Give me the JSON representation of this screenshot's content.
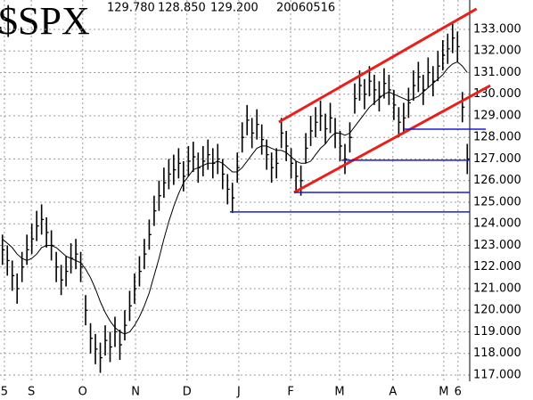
{
  "chart_data": {
    "type": "ohlc",
    "title": "$SPX",
    "header_values": [
      {
        "value": 129.78,
        "label": "129.780"
      },
      {
        "value": 128.85,
        "label": "128.850"
      },
      {
        "value": 129.2,
        "label": "129.200"
      }
    ],
    "date": "20060516",
    "color": "#000000",
    "high": [
      123.5,
      123.0,
      122.3,
      121.7,
      122.7,
      123.5,
      124.0,
      124.6,
      124.9,
      124.3,
      123.7,
      122.7,
      122.1,
      122.5,
      123.1,
      123.3,
      122.7,
      120.7,
      119.4,
      118.9,
      118.5,
      119.3,
      119.0,
      119.7,
      119.1,
      120.0,
      120.9,
      121.7,
      122.5,
      123.3,
      124.2,
      125.3,
      126.0,
      126.6,
      127.0,
      127.2,
      127.5,
      126.9,
      127.6,
      127.8,
      127.3,
      127.6,
      127.9,
      127.5,
      127.7,
      127.0,
      126.3,
      125.9,
      127.3,
      128.7,
      129.5,
      128.9,
      129.3,
      128.6,
      127.9,
      127.3,
      127.5,
      128.9,
      128.3,
      127.5,
      126.9,
      126.7,
      128.2,
      129.0,
      129.4,
      129.7,
      129.1,
      129.6,
      128.9,
      128.3,
      127.7,
      128.7,
      130.5,
      131.1,
      130.7,
      131.3,
      130.9,
      130.6,
      131.2,
      130.9,
      130.2,
      129.4,
      129.6,
      130.3,
      131.1,
      131.5,
      130.9,
      131.7,
      131.3,
      132.0,
      132.5,
      132.8,
      133.3,
      132.9,
      130.1,
      127.7
    ],
    "low": [
      122.1,
      121.6,
      120.9,
      120.3,
      121.3,
      122.1,
      122.6,
      123.2,
      123.5,
      122.9,
      122.3,
      121.3,
      120.7,
      121.1,
      121.7,
      121.9,
      121.3,
      119.3,
      118.0,
      117.5,
      117.1,
      117.9,
      117.6,
      118.3,
      117.7,
      118.6,
      119.5,
      120.3,
      121.1,
      121.9,
      122.8,
      123.9,
      124.6,
      125.2,
      125.6,
      125.8,
      126.1,
      125.5,
      126.2,
      126.4,
      125.9,
      126.2,
      126.5,
      126.1,
      126.3,
      125.6,
      124.9,
      124.5,
      125.9,
      127.3,
      128.1,
      127.5,
      127.9,
      127.2,
      126.5,
      125.9,
      126.1,
      127.5,
      126.9,
      126.1,
      125.5,
      125.3,
      126.8,
      127.6,
      128.0,
      128.3,
      127.7,
      128.2,
      127.5,
      126.9,
      126.3,
      127.3,
      129.1,
      129.7,
      129.3,
      129.9,
      129.5,
      129.2,
      129.8,
      129.5,
      128.8,
      128.0,
      128.2,
      128.9,
      129.7,
      130.1,
      129.5,
      130.3,
      129.9,
      130.6,
      131.1,
      131.4,
      131.9,
      131.5,
      128.7,
      126.3
    ],
    "close": [
      122.8,
      122.3,
      121.6,
      121.0,
      122.0,
      122.8,
      123.3,
      123.9,
      124.2,
      123.6,
      123.0,
      122.0,
      121.4,
      121.8,
      122.4,
      122.6,
      122.0,
      120.0,
      118.7,
      118.2,
      117.8,
      118.6,
      118.3,
      119.0,
      118.4,
      119.3,
      120.2,
      121.0,
      121.8,
      122.6,
      123.5,
      124.6,
      125.3,
      125.9,
      126.3,
      126.5,
      126.8,
      126.2,
      126.9,
      127.1,
      126.6,
      126.9,
      127.2,
      126.8,
      127.0,
      126.3,
      125.6,
      125.2,
      126.6,
      128.0,
      128.8,
      128.2,
      128.6,
      127.9,
      127.2,
      126.6,
      126.8,
      128.2,
      127.6,
      126.8,
      126.2,
      126.0,
      127.5,
      128.3,
      128.7,
      129.0,
      128.4,
      128.9,
      128.2,
      127.6,
      127.0,
      128.0,
      129.8,
      130.4,
      130.0,
      130.6,
      130.2,
      129.9,
      130.5,
      130.2,
      129.5,
      128.7,
      128.9,
      129.6,
      130.4,
      130.8,
      130.2,
      131.0,
      130.6,
      131.3,
      131.8,
      132.1,
      132.6,
      132.2,
      129.4,
      127.0
    ],
    "moving_average": {
      "color": "#000000",
      "values": [
        123.3,
        123.1,
        122.9,
        122.6,
        122.4,
        122.3,
        122.4,
        122.6,
        122.9,
        123.0,
        123.0,
        122.9,
        122.7,
        122.5,
        122.4,
        122.3,
        122.2,
        121.9,
        121.5,
        121.0,
        120.4,
        119.9,
        119.5,
        119.2,
        119.0,
        118.9,
        119.0,
        119.3,
        119.7,
        120.2,
        120.8,
        121.6,
        122.4,
        123.3,
        124.1,
        124.8,
        125.4,
        125.9,
        126.2,
        126.5,
        126.6,
        126.7,
        126.8,
        126.8,
        126.9,
        126.8,
        126.6,
        126.4,
        126.4,
        126.6,
        126.9,
        127.2,
        127.5,
        127.6,
        127.6,
        127.5,
        127.4,
        127.4,
        127.3,
        127.1,
        126.9,
        126.8,
        126.8,
        126.9,
        127.2,
        127.5,
        127.7,
        128.0,
        128.2,
        128.2,
        128.1,
        128.2,
        128.5,
        128.8,
        129.1,
        129.4,
        129.6,
        129.8,
        130.0,
        130.1,
        130.0,
        129.9,
        129.8,
        129.7,
        129.8,
        129.9,
        130.1,
        130.3,
        130.5,
        130.7,
        130.9,
        131.2,
        131.4,
        131.5,
        131.3,
        131.0
      ]
    },
    "trend_lines": [
      {
        "color": "#e8201c",
        "x": [
          56.5,
          96.9
        ],
        "y": [
          128.71,
          133.95
        ]
      },
      {
        "color": "#e8201c",
        "x": [
          59.6,
          99.7
        ],
        "y": [
          125.45,
          130.4
        ]
      },
      {
        "color": "#1c1cdc",
        "x": [
          46.5,
          95.5
        ],
        "y": [
          124.55,
          124.55
        ]
      },
      {
        "color": "#1c1cdc",
        "x": [
          59.6,
          95.5
        ],
        "y": [
          125.45,
          125.45
        ]
      },
      {
        "color": "#1c1cdc",
        "x": [
          69.3,
          95.5
        ],
        "y": [
          126.94,
          126.94
        ]
      },
      {
        "color": "#1c1cdc",
        "x": [
          82.0,
          98.8
        ],
        "y": [
          128.38,
          128.38
        ]
      }
    ],
    "xlim": [
      -0.5,
      95.5
    ],
    "xticks": [
      {
        "value": 0.4,
        "label": "5"
      },
      {
        "value": 5.9,
        "label": "S"
      },
      {
        "value": 16.4,
        "label": "O"
      },
      {
        "value": 27.2,
        "label": "N"
      },
      {
        "value": 37.7,
        "label": "D"
      },
      {
        "value": 48.3,
        "label": "J"
      },
      {
        "value": 58.9,
        "label": "F"
      },
      {
        "value": 68.9,
        "label": "M"
      },
      {
        "value": 79.8,
        "label": "A"
      },
      {
        "value": 90.2,
        "label": "M"
      },
      {
        "value": 93.1,
        "label": "6"
      }
    ],
    "ylim": [
      116.71,
      134.36
    ],
    "yticks": [
      {
        "value": 117,
        "label": "117.000"
      },
      {
        "value": 118,
        "label": "118.000"
      },
      {
        "value": 119,
        "label": "119.000"
      },
      {
        "value": 120,
        "label": "120.000"
      },
      {
        "value": 121,
        "label": "121.000"
      },
      {
        "value": 122,
        "label": "122.000"
      },
      {
        "value": 123,
        "label": "123.000"
      },
      {
        "value": 124,
        "label": "124.000"
      },
      {
        "value": 125,
        "label": "125.000"
      },
      {
        "value": 126,
        "label": "126.000"
      },
      {
        "value": 127,
        "label": "127.000"
      },
      {
        "value": 128,
        "label": "128.000"
      },
      {
        "value": 129,
        "label": "129.000"
      },
      {
        "value": 130,
        "label": "130.000"
      },
      {
        "value": 131,
        "label": "131.000"
      },
      {
        "value": 132,
        "label": "132.000"
      },
      {
        "value": 133,
        "label": "133.000"
      }
    ],
    "grid": true
  }
}
